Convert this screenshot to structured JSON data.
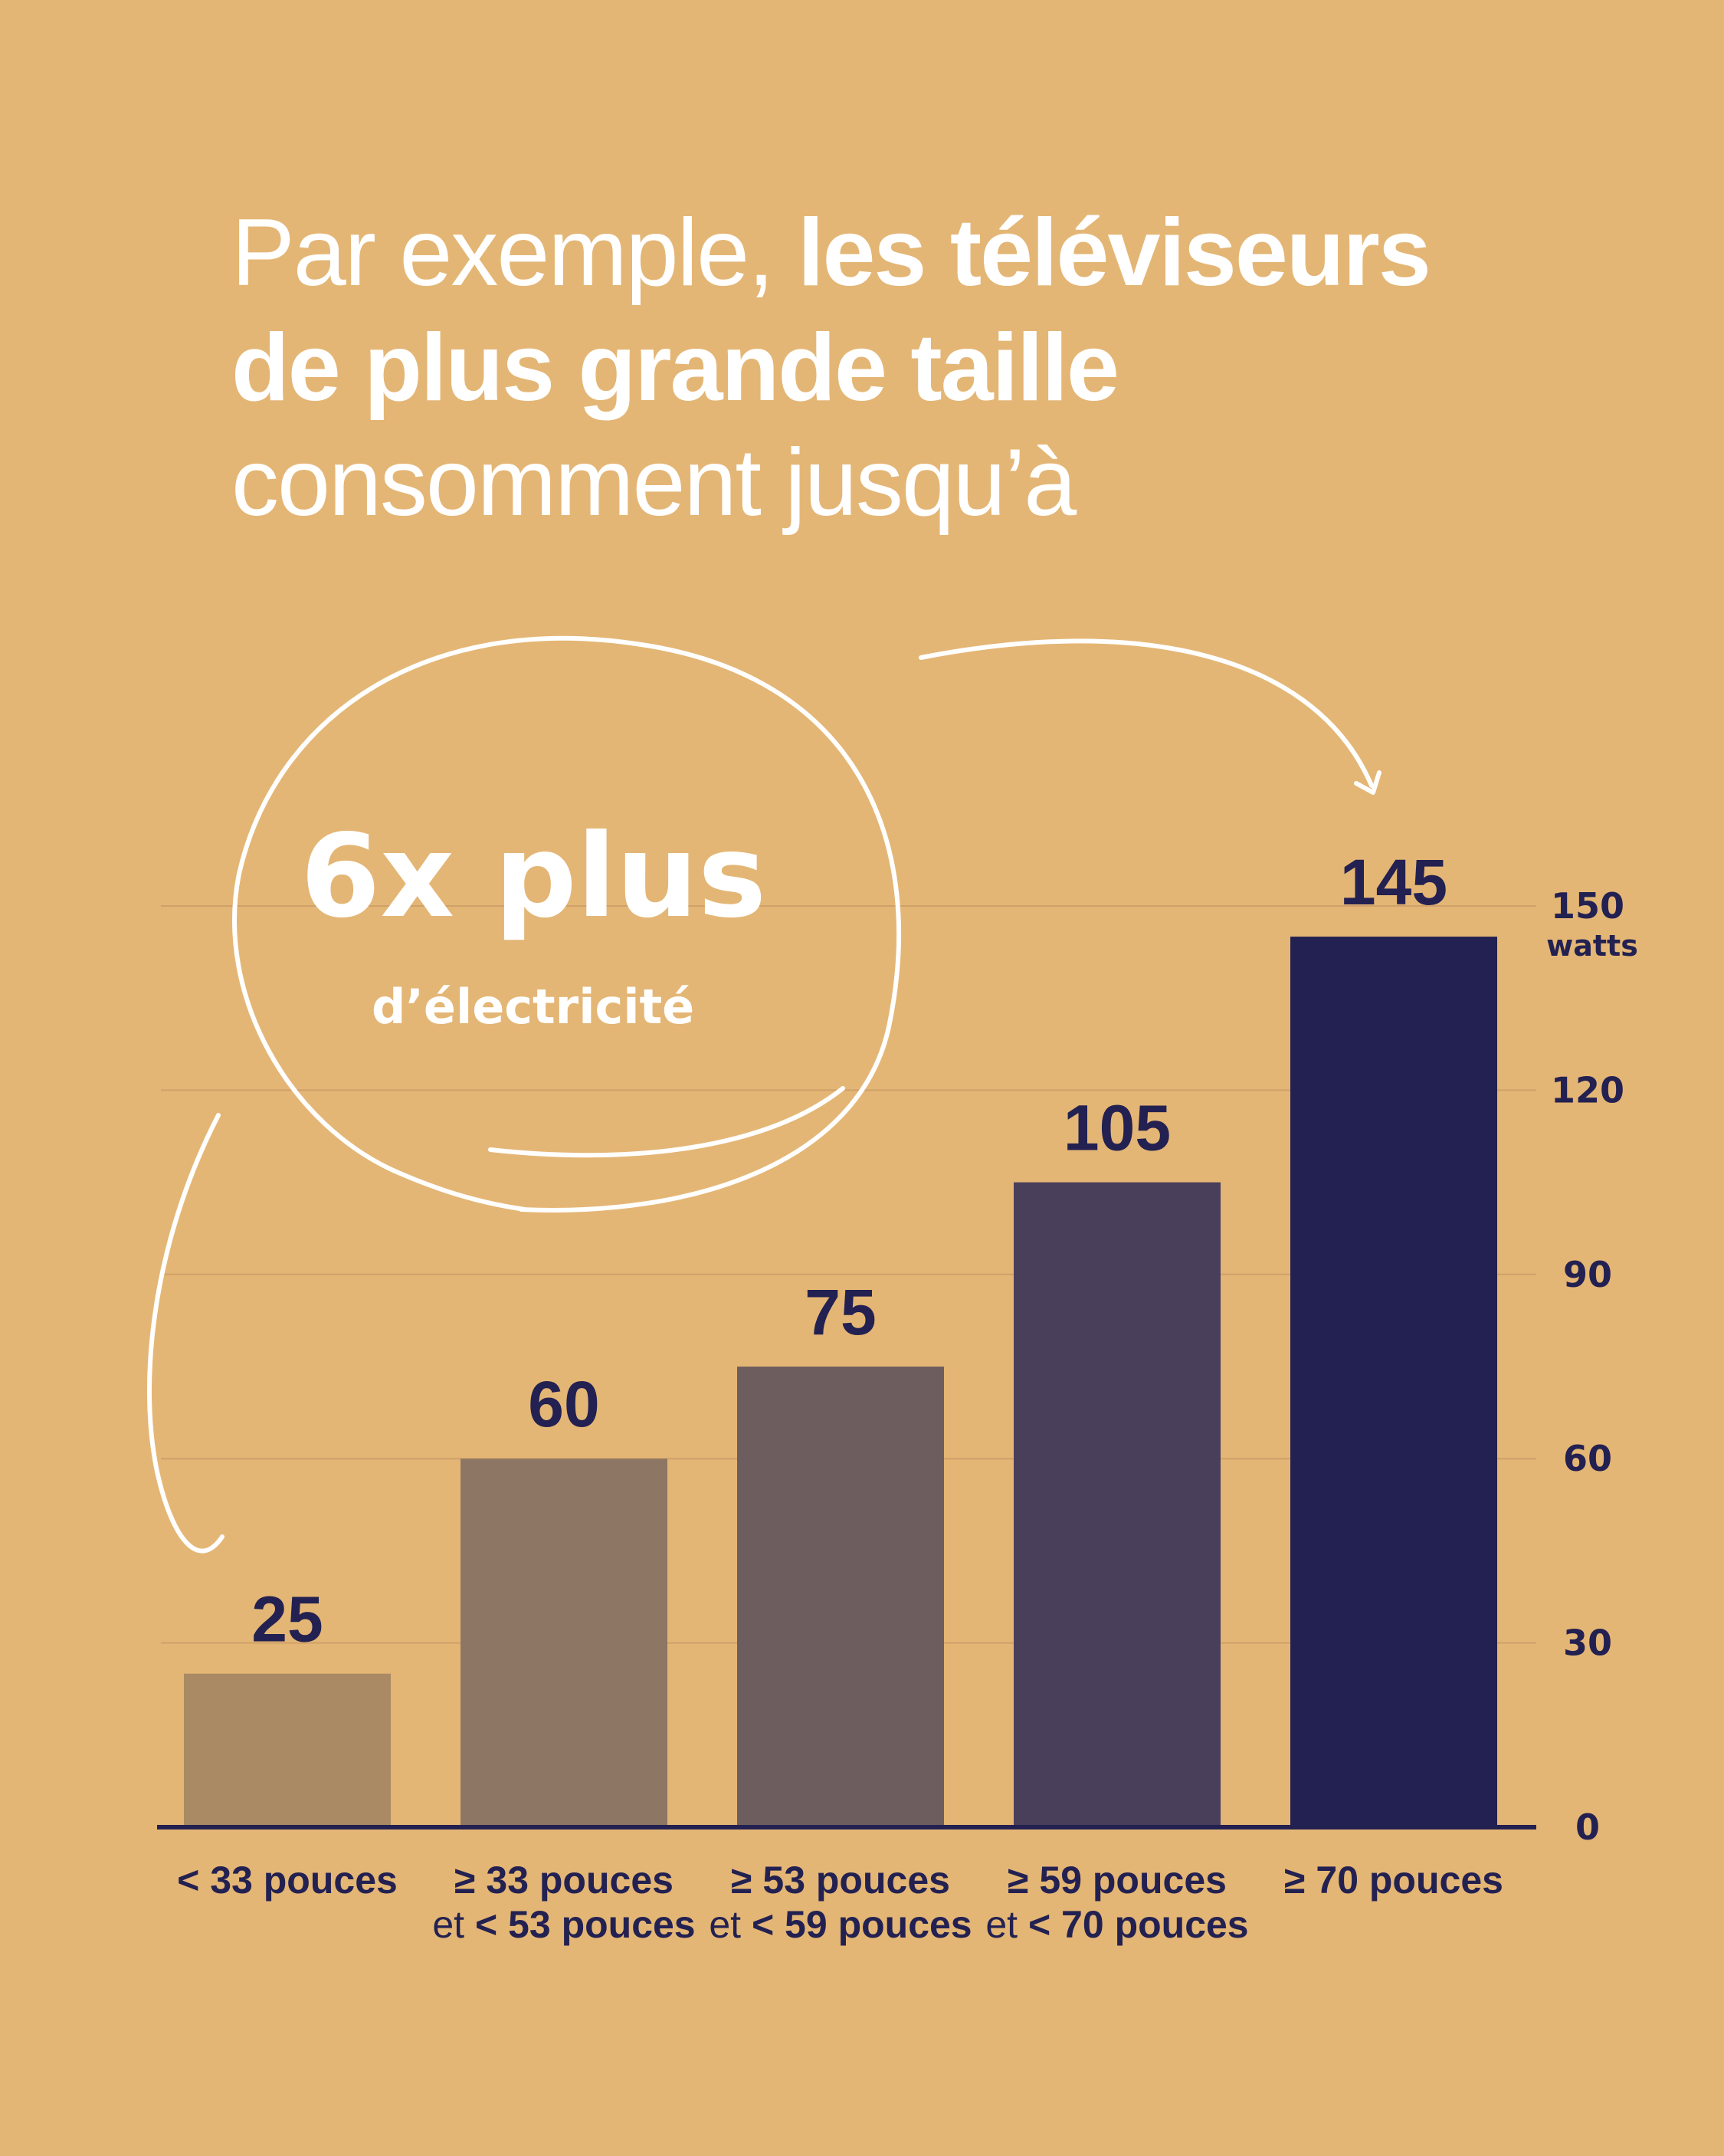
{
  "headline": {
    "line1_regular": "Par exemple, ",
    "line1_bold": "les téléviseurs",
    "line2_bold": "de plus grande taille",
    "line3_regular": "consomment jusqu’à"
  },
  "callout": {
    "big": "6x plus",
    "small": "d’électricité"
  },
  "colors": {
    "background": "#e4b675",
    "axis": "#232151",
    "grid": "#cfa06a",
    "bars": [
      "#aa8a65",
      "#8e7665",
      "#6e5d5f",
      "#4a3f5b",
      "#232151"
    ],
    "annotation": "#ffffff"
  },
  "chart_data": {
    "type": "bar",
    "categories": [
      [
        "< 33 pouces"
      ],
      [
        "≥ 33 pouces",
        "et < 53 pouces"
      ],
      [
        "≥ 53 pouces",
        "et < 59 pouces"
      ],
      [
        "≥ 59 pouces",
        "et < 70 pouces"
      ],
      [
        "≥ 70 pouces"
      ]
    ],
    "values": [
      25,
      60,
      75,
      105,
      145
    ],
    "value_labels": [
      "25",
      "60",
      "75",
      "105",
      "145"
    ],
    "ylim": [
      0,
      150
    ],
    "yticks": [
      0,
      30,
      60,
      90,
      120,
      150
    ],
    "ytick_labels": [
      "0",
      "30",
      "60",
      "90",
      "120",
      "150"
    ],
    "y_unit": "watts",
    "y_axis_position": "right",
    "grid": true
  }
}
